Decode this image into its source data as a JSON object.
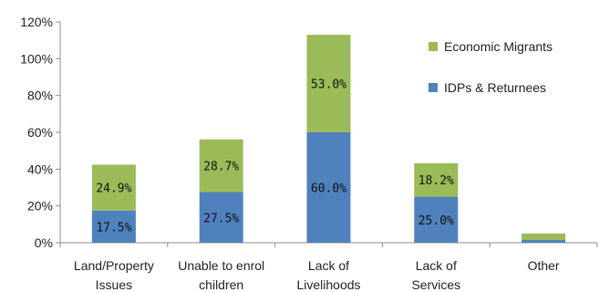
{
  "chart_data": {
    "type": "bar",
    "stacked": true,
    "categories": [
      [
        "Land/Property",
        "Issues"
      ],
      [
        "Unable to enrol",
        "children"
      ],
      [
        "Lack of",
        "Livelihoods"
      ],
      [
        "Lack of",
        "Services"
      ],
      [
        "Other"
      ]
    ],
    "series": [
      {
        "name": "IDPs & Returnees",
        "color": "#4f81bd",
        "values": [
          17.5,
          27.5,
          60.0,
          25.0,
          1.5
        ],
        "labels": [
          "17.5%",
          "27.5%",
          "60.0%",
          "25.0%",
          ""
        ]
      },
      {
        "name": "Economic Migrants",
        "color": "#9bbb59",
        "values": [
          24.9,
          28.7,
          53.0,
          18.2,
          3.5
        ],
        "labels": [
          "24.9%",
          "28.7%",
          "53.0%",
          "18.2%",
          ""
        ]
      }
    ],
    "yticks": [
      "0%",
      "20%",
      "40%",
      "60%",
      "80%",
      "100%",
      "120%"
    ],
    "ylim": [
      0,
      120
    ],
    "grid": false,
    "legend_position": "right",
    "legend_order": [
      "Economic Migrants",
      "IDPs & Returnees"
    ]
  }
}
